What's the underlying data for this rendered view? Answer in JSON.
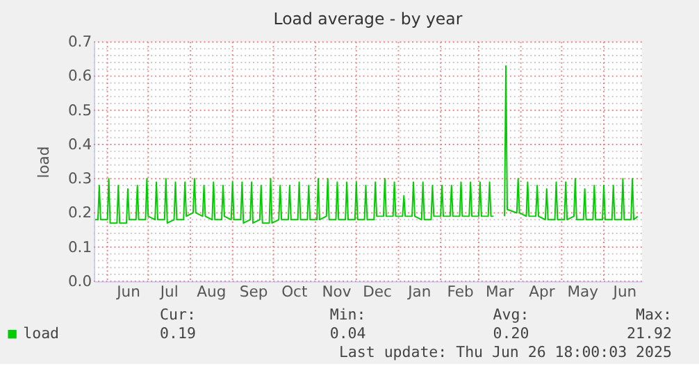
{
  "chart_data": {
    "type": "line",
    "title": "Load average - by year",
    "ylabel": "load",
    "x": [
      "2024-05-23",
      "2024-05-25",
      "2024-05-26",
      "2024-05-27",
      "2024-06-01",
      "2024-06-02",
      "2024-06-03",
      "2024-06-08",
      "2024-06-09",
      "2024-06-10",
      "2024-06-15",
      "2024-06-16",
      "2024-06-17",
      "2024-06-22",
      "2024-06-23",
      "2024-06-24",
      "2024-06-29",
      "2024-06-30",
      "2024-07-01",
      "2024-07-06",
      "2024-07-07",
      "2024-07-08",
      "2024-07-13",
      "2024-07-14",
      "2024-07-15",
      "2024-07-20",
      "2024-07-21",
      "2024-07-22",
      "2024-07-27",
      "2024-07-28",
      "2024-07-29",
      "2024-08-03",
      "2024-08-04",
      "2024-08-05",
      "2024-08-10",
      "2024-08-11",
      "2024-08-12",
      "2024-08-17",
      "2024-08-18",
      "2024-08-19",
      "2024-08-24",
      "2024-08-25",
      "2024-08-26",
      "2024-08-31",
      "2024-09-01",
      "2024-09-02",
      "2024-09-07",
      "2024-09-08",
      "2024-09-09",
      "2024-09-14",
      "2024-09-15",
      "2024-09-16",
      "2024-09-21",
      "2024-09-22",
      "2024-09-23",
      "2024-09-28",
      "2024-09-29",
      "2024-09-30",
      "2024-10-05",
      "2024-10-06",
      "2024-10-07",
      "2024-10-12",
      "2024-10-13",
      "2024-10-14",
      "2024-10-19",
      "2024-10-20",
      "2024-10-21",
      "2024-10-26",
      "2024-10-27",
      "2024-10-28",
      "2024-11-02",
      "2024-11-03",
      "2024-11-04",
      "2024-11-09",
      "2024-11-10",
      "2024-11-11",
      "2024-11-16",
      "2024-11-17",
      "2024-11-18",
      "2024-11-23",
      "2024-11-24",
      "2024-11-25",
      "2024-11-30",
      "2024-12-01",
      "2024-12-02",
      "2024-12-07",
      "2024-12-08",
      "2024-12-09",
      "2024-12-14",
      "2024-12-15",
      "2024-12-16",
      "2024-12-21",
      "2024-12-22",
      "2024-12-23",
      "2024-12-28",
      "2024-12-29",
      "2024-12-30",
      "2025-01-04",
      "2025-01-05",
      "2025-01-06",
      "2025-01-11",
      "2025-01-12",
      "2025-01-13",
      "2025-01-18",
      "2025-01-19",
      "2025-01-20",
      "2025-01-25",
      "2025-01-26",
      "2025-01-27",
      "2025-02-01",
      "2025-02-02",
      "2025-02-03",
      "2025-02-08",
      "2025-02-09",
      "2025-02-10",
      "2025-02-15",
      "2025-02-16",
      "2025-02-17",
      "2025-02-22",
      "2025-02-23",
      "2025-02-24",
      "2025-03-01",
      "2025-03-02",
      "2025-03-03",
      "2025-03-08",
      "2025-03-09",
      "2025-03-10",
      "2025-03-12",
      "2025-03-13",
      "2025-03-20",
      "2025-03-21",
      "2025-03-22",
      "2025-03-29",
      "2025-03-30",
      "2025-03-31",
      "2025-04-05",
      "2025-04-06",
      "2025-04-07",
      "2025-04-12",
      "2025-04-13",
      "2025-04-14",
      "2025-04-19",
      "2025-04-20",
      "2025-04-21",
      "2025-04-26",
      "2025-04-27",
      "2025-04-28",
      "2025-05-03",
      "2025-05-04",
      "2025-05-05",
      "2025-05-10",
      "2025-05-11",
      "2025-05-12",
      "2025-05-17",
      "2025-05-18",
      "2025-05-19",
      "2025-05-24",
      "2025-05-25",
      "2025-05-26",
      "2025-05-31",
      "2025-06-01",
      "2025-06-02",
      "2025-06-07",
      "2025-06-08",
      "2025-06-09",
      "2025-06-14",
      "2025-06-15",
      "2025-06-16",
      "2025-06-21",
      "2025-06-22",
      "2025-06-23",
      "2025-06-26"
    ],
    "series": [
      {
        "name": "load",
        "color": "#00cc00",
        "values": [
          0.18,
          0.18,
          0.28,
          0.18,
          0.18,
          0.3,
          0.17,
          0.17,
          0.28,
          0.17,
          0.17,
          0.27,
          0.18,
          0.18,
          0.28,
          0.18,
          0.18,
          0.3,
          0.19,
          0.18,
          0.29,
          0.18,
          0.18,
          0.3,
          0.17,
          0.18,
          0.29,
          0.18,
          0.18,
          0.29,
          0.19,
          0.2,
          0.3,
          0.2,
          0.19,
          0.28,
          0.19,
          0.18,
          0.29,
          0.18,
          0.18,
          0.28,
          0.19,
          0.18,
          0.29,
          0.18,
          0.18,
          0.29,
          0.17,
          0.18,
          0.29,
          0.17,
          0.18,
          0.28,
          0.17,
          0.17,
          0.3,
          0.17,
          0.18,
          0.28,
          0.18,
          0.18,
          0.28,
          0.18,
          0.18,
          0.29,
          0.18,
          0.18,
          0.28,
          0.18,
          0.18,
          0.3,
          0.18,
          0.19,
          0.3,
          0.18,
          0.18,
          0.29,
          0.18,
          0.18,
          0.29,
          0.18,
          0.18,
          0.29,
          0.18,
          0.18,
          0.28,
          0.18,
          0.18,
          0.29,
          0.19,
          0.19,
          0.3,
          0.19,
          0.19,
          0.29,
          0.19,
          0.19,
          0.25,
          0.19,
          0.19,
          0.29,
          0.19,
          0.18,
          0.29,
          0.18,
          0.18,
          0.28,
          0.19,
          0.19,
          0.28,
          0.19,
          0.19,
          0.28,
          0.19,
          0.19,
          0.29,
          0.19,
          0.19,
          0.29,
          0.19,
          0.19,
          0.29,
          0.19,
          0.19,
          0.29,
          0.19,
          0.19,
          null,
          0.19,
          0.63,
          0.21,
          0.2,
          0.3,
          0.2,
          0.19,
          0.29,
          0.19,
          0.19,
          0.28,
          0.19,
          0.18,
          0.27,
          0.18,
          0.18,
          0.29,
          0.18,
          0.18,
          0.29,
          0.18,
          0.19,
          0.3,
          0.18,
          0.18,
          0.27,
          0.18,
          0.18,
          0.28,
          0.18,
          0.18,
          0.28,
          0.18,
          0.18,
          0.28,
          0.18,
          0.18,
          0.3,
          0.18,
          0.18,
          0.3,
          0.18,
          0.19
        ]
      }
    ],
    "xlim": [
      "2024-05-22",
      "2025-06-29"
    ],
    "xticks": [
      {
        "value": "2024-06-01",
        "label": null
      },
      {
        "value": "2024-06-16",
        "label": "Jun"
      },
      {
        "value": "2024-07-01",
        "label": null
      },
      {
        "value": "2024-07-16",
        "label": "Jul"
      },
      {
        "value": "2024-08-01",
        "label": null
      },
      {
        "value": "2024-08-16",
        "label": "Aug"
      },
      {
        "value": "2024-09-01",
        "label": null
      },
      {
        "value": "2024-09-16",
        "label": "Sep"
      },
      {
        "value": "2024-10-01",
        "label": null
      },
      {
        "value": "2024-10-16",
        "label": "Oct"
      },
      {
        "value": "2024-11-01",
        "label": null
      },
      {
        "value": "2024-11-16",
        "label": "Nov"
      },
      {
        "value": "2024-12-01",
        "label": null
      },
      {
        "value": "2024-12-16",
        "label": "Dec"
      },
      {
        "value": "2025-01-01",
        "label": null
      },
      {
        "value": "2025-01-16",
        "label": "Jan"
      },
      {
        "value": "2025-02-01",
        "label": null
      },
      {
        "value": "2025-02-15",
        "label": "Feb"
      },
      {
        "value": "2025-03-01",
        "label": null
      },
      {
        "value": "2025-03-16",
        "label": "Mar"
      },
      {
        "value": "2025-04-01",
        "label": null
      },
      {
        "value": "2025-04-16",
        "label": "Apr"
      },
      {
        "value": "2025-05-01",
        "label": null
      },
      {
        "value": "2025-05-16",
        "label": "May"
      },
      {
        "value": "2025-06-01",
        "label": null
      },
      {
        "value": "2025-06-16",
        "label": "Jun"
      }
    ],
    "ylim": [
      0,
      0.7
    ],
    "yticks": [
      {
        "value": 0,
        "label": "0.0"
      },
      {
        "value": 0.02,
        "label": null
      },
      {
        "value": 0.04,
        "label": null
      },
      {
        "value": 0.06,
        "label": null
      },
      {
        "value": 0.08,
        "label": null
      },
      0.1,
      {
        "value": 0.12,
        "label": null
      },
      {
        "value": 0.14,
        "label": null
      },
      {
        "value": 0.16,
        "label": null
      },
      {
        "value": 0.18,
        "label": null
      },
      0.2,
      {
        "value": 0.22,
        "label": null
      },
      {
        "value": 0.24,
        "label": null
      },
      {
        "value": 0.26,
        "label": null
      },
      {
        "value": 0.28,
        "label": null
      },
      0.3,
      {
        "value": 0.32,
        "label": null
      },
      {
        "value": 0.34,
        "label": null
      },
      {
        "value": 0.36,
        "label": null
      },
      {
        "value": 0.38,
        "label": null
      },
      0.4,
      {
        "value": 0.42,
        "label": null
      },
      {
        "value": 0.44,
        "label": null
      },
      {
        "value": 0.46,
        "label": null
      },
      {
        "value": 0.48,
        "label": null
      },
      0.5,
      {
        "value": 0.52,
        "label": null
      },
      {
        "value": 0.54,
        "label": null
      },
      {
        "value": 0.56,
        "label": null
      },
      {
        "value": 0.58,
        "label": null
      },
      0.6,
      {
        "value": 0.62,
        "label": null
      },
      {
        "value": 0.64,
        "label": null
      },
      {
        "value": 0.66,
        "label": null
      },
      {
        "value": 0.68,
        "label": null
      },
      0.7
    ],
    "grid": true,
    "legend": "bottom",
    "annotations": [
      "Cur:",
      "Min:",
      "Avg:",
      "Max:",
      "0.19",
      "0.04",
      "0.20",
      "21.92",
      "Last update: Thu Jun 26 18:00:03 2025"
    ]
  }
}
